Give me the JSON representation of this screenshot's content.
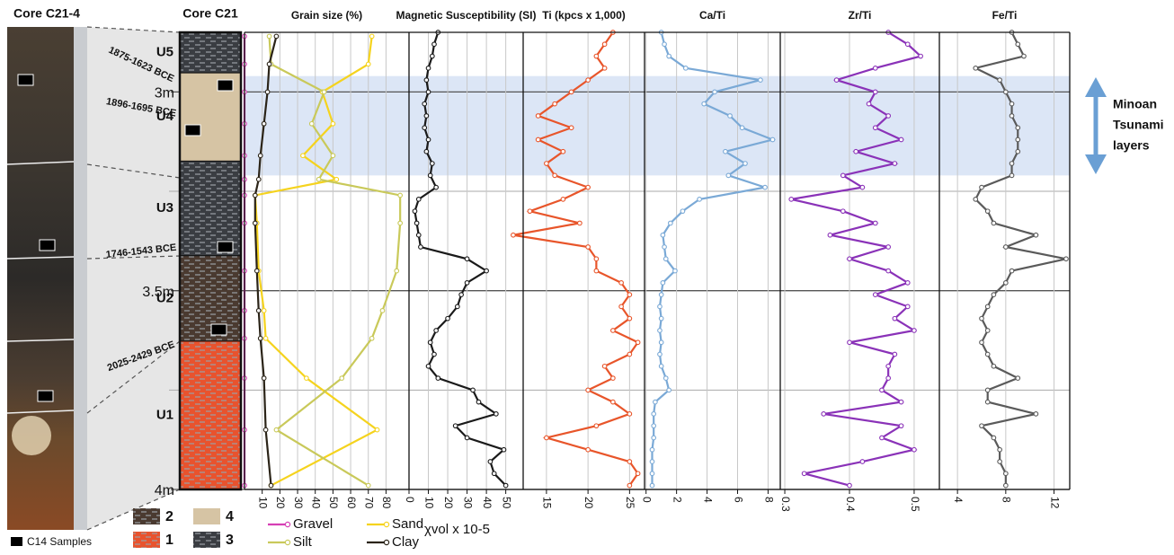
{
  "depth_axis": {
    "ylim": [
      2.85,
      4.0
    ],
    "yticks": [
      {
        "value": 3,
        "label": "3m"
      },
      {
        "value": 3.5,
        "label": "3.5m"
      },
      {
        "value": 4,
        "label": "4m"
      }
    ],
    "minor_ticks": [
      3.25,
      3.75
    ]
  },
  "highlight": {
    "range": [
      2.96,
      3.21
    ],
    "color": "#dce6f6",
    "label": [
      "Minoan",
      "Tsunami",
      "layers"
    ]
  },
  "core_photo": {
    "title": "Core C21-4",
    "c14_legend": "C14 Samples"
  },
  "core_log": {
    "title": "Core C21",
    "units": [
      {
        "label": "U5",
        "top": 2.85,
        "bottom": 2.952,
        "lith": 3
      },
      {
        "label": "U4",
        "top": 2.952,
        "bottom": 3.174,
        "lith": 4
      },
      {
        "label": "U3",
        "top": 3.174,
        "bottom": 3.412,
        "lith": 3
      },
      {
        "label": "U2",
        "top": 3.412,
        "bottom": 3.627,
        "lith": 2
      },
      {
        "label": "U1",
        "top": 3.627,
        "bottom": 4.0,
        "lith": 1
      }
    ],
    "dates": [
      "1875-1623 BCE",
      "1896-1695 BCE",
      "1746-1543 BCE",
      "2025-2429 BCE"
    ],
    "lithology_legend": [
      {
        "label": "2",
        "color": "#4a3a30",
        "pattern": "dashes"
      },
      {
        "label": "4",
        "color": "#d6c4a4",
        "pattern": "none"
      },
      {
        "label": "1",
        "color": "#e8532e",
        "pattern": "dashes"
      },
      {
        "label": "3",
        "color": "#3a3d42",
        "pattern": "dashes"
      }
    ]
  },
  "chart_data": [
    {
      "type": "line",
      "title": "Grain size (%)",
      "xlim": [
        0,
        93
      ],
      "xticks": [
        10,
        20,
        30,
        40,
        50,
        60,
        70,
        80
      ],
      "depth": [
        2.86,
        2.93,
        3.0,
        3.08,
        3.16,
        3.22,
        3.26,
        3.33,
        3.45,
        3.55,
        3.62,
        3.72,
        3.85,
        3.99
      ],
      "series": [
        {
          "name": "Gravel",
          "color": "#d63fb5",
          "values": [
            0,
            0,
            0,
            0,
            0,
            0,
            0,
            0,
            0,
            0,
            0,
            0,
            0,
            0
          ]
        },
        {
          "name": "Sand",
          "color": "#f5d31e",
          "values": [
            72,
            70,
            44,
            50,
            33,
            52,
            6,
            7,
            8,
            11,
            12,
            35,
            75,
            15
          ]
        },
        {
          "name": "Silt",
          "color": "#c9c95a",
          "values": [
            14,
            15,
            45,
            38,
            50,
            42,
            88,
            88,
            86,
            78,
            72,
            55,
            18,
            70
          ]
        },
        {
          "name": "Clay",
          "color": "#2b2418",
          "values": [
            18,
            14,
            13,
            11,
            9,
            8,
            6,
            6,
            7,
            8,
            9,
            11,
            12,
            15
          ]
        }
      ]
    },
    {
      "type": "line",
      "title": "Magnetic Susceptibility (SI)",
      "xlabel": "χvol x 10-5",
      "xlim": [
        0,
        59
      ],
      "xticks": [
        0,
        10,
        20,
        30,
        40,
        50
      ],
      "color": "#1a1a1a",
      "depth": [
        2.85,
        2.88,
        2.91,
        2.94,
        2.97,
        3.0,
        3.03,
        3.06,
        3.09,
        3.12,
        3.15,
        3.18,
        3.21,
        3.24,
        3.27,
        3.3,
        3.33,
        3.36,
        3.39,
        3.42,
        3.45,
        3.48,
        3.51,
        3.54,
        3.57,
        3.6,
        3.63,
        3.66,
        3.69,
        3.72,
        3.75,
        3.78,
        3.81,
        3.84,
        3.87,
        3.9,
        3.93,
        3.96,
        3.99
      ],
      "values": [
        15,
        13,
        12,
        10,
        9,
        10,
        8,
        9,
        8,
        10,
        9,
        12,
        11,
        14,
        5,
        3,
        4,
        5,
        6,
        30,
        40,
        30,
        27,
        25,
        20,
        14,
        11,
        13,
        10,
        15,
        33,
        36,
        45,
        24,
        30,
        49,
        42,
        44,
        50
      ]
    },
    {
      "type": "line",
      "title": "Ti (kpcs x 1,000)",
      "xlim": [
        12.2,
        26.8
      ],
      "xticks": [
        15,
        20,
        25
      ],
      "color": "#e8552a",
      "depth": [
        2.85,
        2.88,
        2.91,
        2.94,
        2.97,
        3.0,
        3.03,
        3.06,
        3.09,
        3.12,
        3.15,
        3.18,
        3.21,
        3.24,
        3.27,
        3.3,
        3.33,
        3.36,
        3.39,
        3.42,
        3.45,
        3.48,
        3.51,
        3.54,
        3.57,
        3.6,
        3.63,
        3.66,
        3.69,
        3.72,
        3.75,
        3.78,
        3.81,
        3.84,
        3.87,
        3.9,
        3.93,
        3.96,
        3.99
      ],
      "values": [
        23,
        22,
        21,
        22,
        20,
        18,
        16,
        14,
        18,
        14,
        17,
        15,
        16,
        20,
        17,
        13,
        19,
        11,
        20,
        21,
        21,
        24,
        25,
        24,
        25,
        23,
        26,
        25,
        22,
        23,
        20,
        23,
        25,
        21,
        15,
        20,
        25,
        26,
        25
      ]
    },
    {
      "type": "line",
      "title": "Ca/Ti",
      "xlim": [
        -0.1,
        8.8
      ],
      "xticks": [
        0,
        2,
        4,
        6,
        8
      ],
      "color": "#7aa9d6",
      "depth": [
        2.85,
        2.88,
        2.91,
        2.94,
        2.97,
        3.0,
        3.03,
        3.06,
        3.09,
        3.12,
        3.15,
        3.18,
        3.21,
        3.24,
        3.27,
        3.3,
        3.33,
        3.36,
        3.39,
        3.42,
        3.45,
        3.48,
        3.51,
        3.54,
        3.57,
        3.6,
        3.63,
        3.66,
        3.69,
        3.72,
        3.75,
        3.78,
        3.81,
        3.84,
        3.87,
        3.9,
        3.93,
        3.96,
        3.99
      ],
      "values": [
        1.0,
        1.2,
        1.5,
        2.6,
        7.5,
        4.5,
        3.8,
        5.5,
        6.3,
        8.3,
        5.2,
        6.5,
        5.4,
        7.8,
        3.5,
        2.4,
        1.6,
        1.1,
        1.2,
        1.3,
        1.9,
        1.1,
        1.0,
        0.9,
        1.0,
        0.9,
        1.0,
        0.9,
        1.0,
        1.3,
        1.5,
        0.6,
        0.5,
        0.5,
        0.5,
        0.4,
        0.4,
        0.4,
        0.4
      ]
    },
    {
      "type": "line",
      "title": "Zr/Ti",
      "xlim": [
        0.293,
        0.539
      ],
      "xticks": [
        0.3,
        0.4,
        0.5
      ],
      "color": "#8a32b8",
      "depth": [
        2.85,
        2.88,
        2.91,
        2.94,
        2.97,
        3.0,
        3.03,
        3.06,
        3.09,
        3.12,
        3.15,
        3.18,
        3.21,
        3.24,
        3.27,
        3.3,
        3.33,
        3.36,
        3.39,
        3.42,
        3.45,
        3.48,
        3.51,
        3.54,
        3.57,
        3.6,
        3.63,
        3.66,
        3.69,
        3.72,
        3.75,
        3.78,
        3.81,
        3.84,
        3.87,
        3.9,
        3.93,
        3.96,
        3.99
      ],
      "values": [
        0.46,
        0.49,
        0.51,
        0.44,
        0.38,
        0.44,
        0.43,
        0.46,
        0.44,
        0.48,
        0.41,
        0.47,
        0.39,
        0.42,
        0.31,
        0.39,
        0.44,
        0.37,
        0.46,
        0.4,
        0.46,
        0.49,
        0.44,
        0.49,
        0.47,
        0.5,
        0.4,
        0.47,
        0.46,
        0.46,
        0.45,
        0.48,
        0.36,
        0.48,
        0.45,
        0.5,
        0.42,
        0.33,
        0.4
      ]
    },
    {
      "type": "line",
      "title": "Fe/Ti",
      "xlim": [
        2.5,
        13.3
      ],
      "xticks": [
        4,
        8,
        12
      ],
      "color": "#5a5a5a",
      "depth": [
        2.85,
        2.88,
        2.91,
        2.94,
        2.97,
        3.0,
        3.03,
        3.06,
        3.09,
        3.12,
        3.15,
        3.18,
        3.21,
        3.24,
        3.27,
        3.3,
        3.33,
        3.36,
        3.39,
        3.42,
        3.45,
        3.48,
        3.51,
        3.54,
        3.57,
        3.6,
        3.63,
        3.66,
        3.69,
        3.72,
        3.75,
        3.78,
        3.81,
        3.84,
        3.87,
        3.9,
        3.93,
        3.96,
        3.99
      ],
      "values": [
        8.5,
        9.0,
        9.5,
        5.5,
        7.5,
        8.0,
        8.5,
        8.5,
        9.0,
        9.0,
        9.0,
        8.5,
        8.5,
        6.0,
        5.5,
        6.5,
        7.0,
        10.5,
        8.0,
        13.0,
        8.5,
        8.0,
        7.0,
        6.5,
        6.0,
        6.5,
        6.0,
        6.5,
        7.0,
        9.0,
        6.5,
        6.5,
        10.5,
        6.0,
        7.0,
        7.5,
        7.5,
        8.0,
        8.0
      ]
    }
  ]
}
